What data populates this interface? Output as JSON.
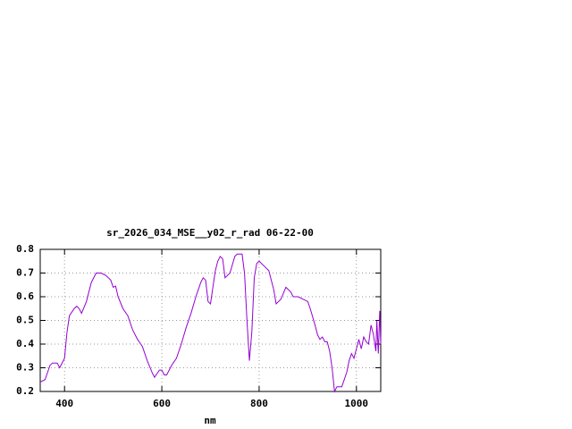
{
  "chart_data": {
    "type": "line",
    "title": "sr_2026_034_MSE__y02_r_rad 06-22-00",
    "x_label": "nm",
    "color": "#9400d3",
    "grid": true,
    "xlim": [
      350,
      1050
    ],
    "ylim": [
      0.2,
      0.8
    ],
    "xticks": [
      400,
      600,
      800,
      1000
    ],
    "yticks": [
      0.2,
      0.3,
      0.4,
      0.5,
      0.6,
      0.7,
      0.8
    ],
    "x": [
      350,
      360,
      370,
      375,
      385,
      390,
      400,
      405,
      410,
      420,
      425,
      430,
      435,
      445,
      455,
      465,
      475,
      485,
      495,
      500,
      505,
      510,
      520,
      530,
      540,
      550,
      560,
      570,
      580,
      585,
      595,
      600,
      605,
      610,
      620,
      630,
      640,
      650,
      660,
      670,
      680,
      685,
      690,
      695,
      700,
      710,
      715,
      720,
      725,
      730,
      740,
      750,
      755,
      765,
      770,
      775,
      780,
      785,
      790,
      795,
      800,
      810,
      820,
      825,
      830,
      835,
      845,
      855,
      865,
      870,
      880,
      890,
      900,
      905,
      915,
      920,
      925,
      930,
      935,
      940,
      945,
      950,
      955,
      960,
      970,
      980,
      985,
      990,
      995,
      1000,
      1005,
      1010,
      1015,
      1020,
      1025,
      1030,
      1035,
      1040,
      1042,
      1045,
      1048,
      1050
    ],
    "values": [
      0.24,
      0.25,
      0.31,
      0.32,
      0.32,
      0.3,
      0.34,
      0.45,
      0.52,
      0.55,
      0.56,
      0.55,
      0.53,
      0.58,
      0.66,
      0.7,
      0.7,
      0.69,
      0.67,
      0.64,
      0.645,
      0.6,
      0.55,
      0.52,
      0.46,
      0.42,
      0.39,
      0.33,
      0.28,
      0.26,
      0.29,
      0.29,
      0.27,
      0.27,
      0.31,
      0.34,
      0.4,
      0.47,
      0.53,
      0.6,
      0.66,
      0.68,
      0.67,
      0.58,
      0.57,
      0.71,
      0.75,
      0.77,
      0.76,
      0.68,
      0.7,
      0.77,
      0.78,
      0.78,
      0.7,
      0.5,
      0.33,
      0.45,
      0.68,
      0.74,
      0.75,
      0.73,
      0.71,
      0.67,
      0.63,
      0.57,
      0.59,
      0.64,
      0.62,
      0.6,
      0.6,
      0.59,
      0.58,
      0.55,
      0.48,
      0.44,
      0.42,
      0.43,
      0.41,
      0.41,
      0.37,
      0.3,
      0.2,
      0.22,
      0.22,
      0.28,
      0.33,
      0.36,
      0.34,
      0.38,
      0.42,
      0.38,
      0.43,
      0.41,
      0.4,
      0.48,
      0.44,
      0.37,
      0.5,
      0.36,
      0.54,
      0.4
    ]
  }
}
